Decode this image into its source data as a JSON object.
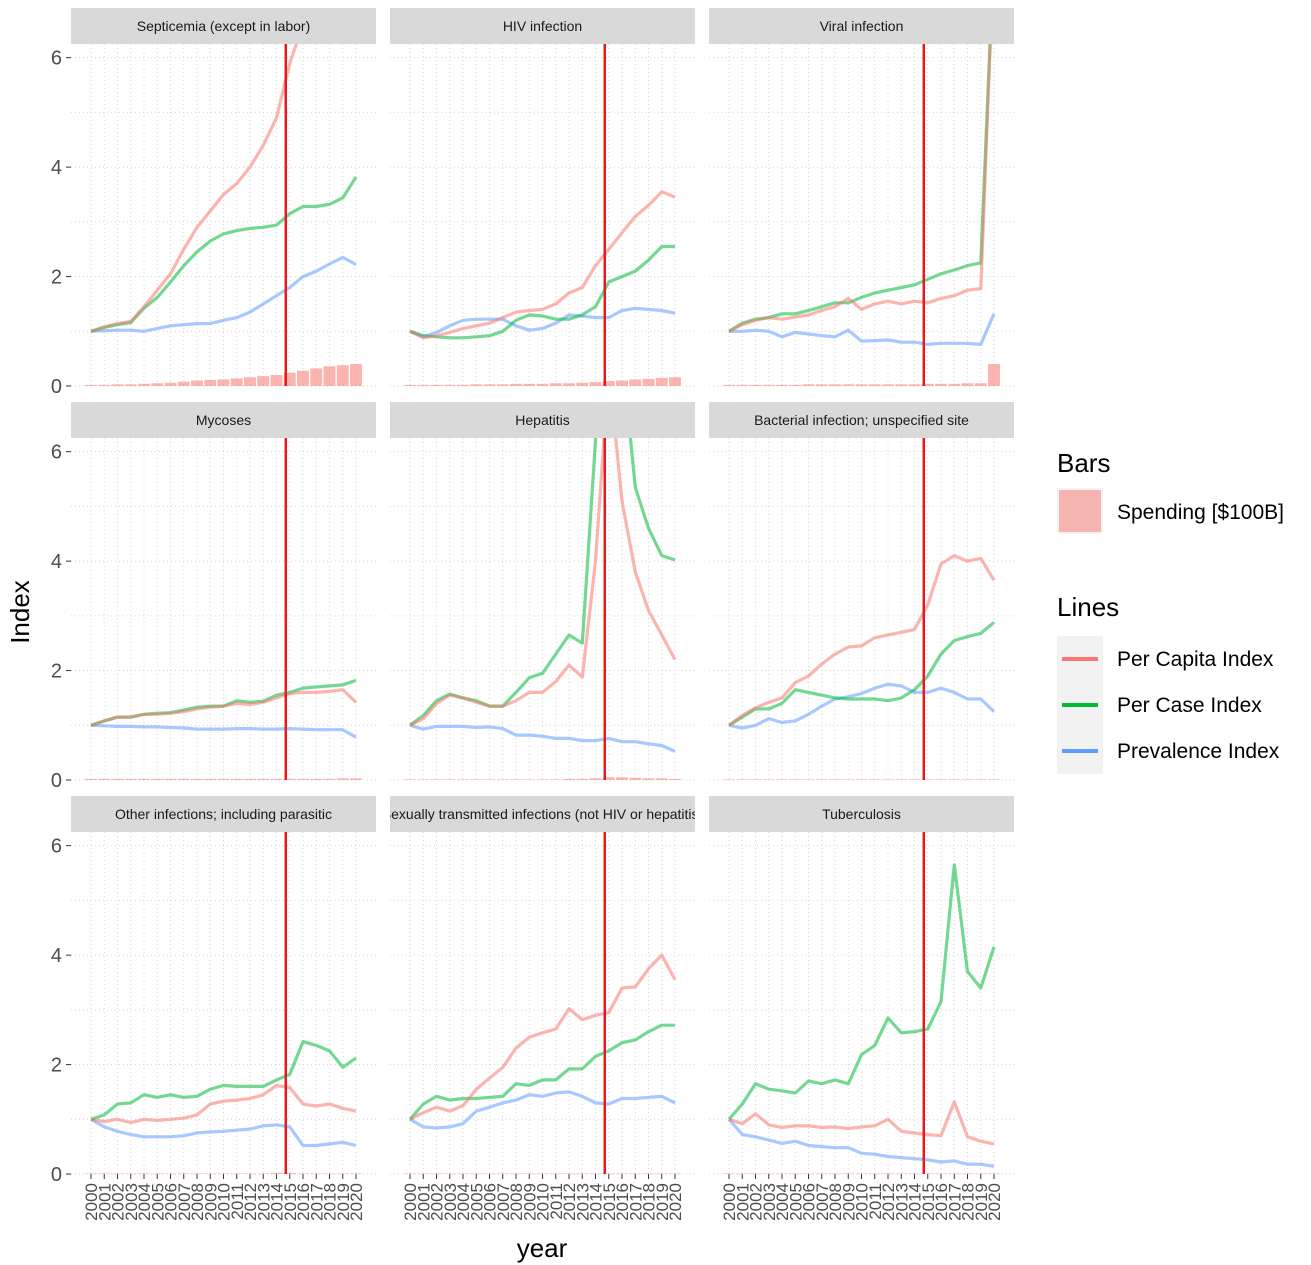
{
  "axes": {
    "xlabel": "year",
    "ylabel": "Index"
  },
  "legend": {
    "bars_title": "Bars",
    "bars_items": [
      {
        "label": "Spending [$100B]",
        "color": "#F8766D"
      }
    ],
    "lines_title": "Lines",
    "lines_items": [
      {
        "label": "Per Capita Index",
        "color": "#F8766D"
      },
      {
        "label": "Per Case Index",
        "color": "#00BA38"
      },
      {
        "label": "Prevalence Index",
        "color": "#619CFF"
      }
    ]
  },
  "chart_data": {
    "type": "line",
    "facets": 9,
    "x": [
      2000,
      2001,
      2002,
      2003,
      2004,
      2005,
      2006,
      2007,
      2008,
      2009,
      2010,
      2011,
      2012,
      2013,
      2014,
      2015,
      2016,
      2017,
      2018,
      2019,
      2020
    ],
    "x_tick_labels": [
      "2000",
      "2001",
      "2002",
      "2003",
      "2004",
      "2005",
      "2006",
      "2007",
      "2008",
      "2009",
      "2010",
      "2011",
      "2012",
      "2013",
      "2014",
      "2015",
      "2016",
      "2017",
      "2018",
      "2019",
      "2020"
    ],
    "ylim": [
      0,
      6.25
    ],
    "y_ticks": [
      0,
      2,
      4,
      6
    ],
    "y_tick_labels": [
      "0",
      "2",
      "4",
      "6"
    ],
    "vline_x": 2014.7,
    "vline_color": "#E41A1C",
    "colors": {
      "per_capita": "#F8766D",
      "per_case": "#00BA38",
      "prevalence": "#619CFF",
      "bars": "#F8766D"
    },
    "panels": [
      {
        "title": "Septicemia (except in labor)",
        "spending": [
          0.02,
          0.02,
          0.03,
          0.03,
          0.04,
          0.05,
          0.06,
          0.08,
          0.1,
          0.11,
          0.12,
          0.14,
          0.16,
          0.18,
          0.2,
          0.24,
          0.28,
          0.32,
          0.36,
          0.38,
          0.4
        ],
        "per_capita": [
          1.0,
          1.08,
          1.14,
          1.18,
          1.45,
          1.75,
          2.05,
          2.5,
          2.9,
          3.2,
          3.5,
          3.7,
          4.0,
          4.4,
          4.9,
          5.9,
          6.6,
          7.0,
          7.4,
          7.8,
          8.2
        ],
        "per_case": [
          1.0,
          1.07,
          1.12,
          1.16,
          1.42,
          1.62,
          1.9,
          2.2,
          2.45,
          2.65,
          2.78,
          2.84,
          2.88,
          2.9,
          2.94,
          3.15,
          3.28,
          3.28,
          3.32,
          3.44,
          3.82
        ],
        "prevalence": [
          1.0,
          1.01,
          1.02,
          1.02,
          1.0,
          1.05,
          1.1,
          1.12,
          1.14,
          1.14,
          1.2,
          1.25,
          1.35,
          1.5,
          1.65,
          1.8,
          2.0,
          2.1,
          2.23,
          2.35,
          2.22
        ]
      },
      {
        "title": "HIV infection",
        "spending": [
          0.02,
          0.02,
          0.02,
          0.02,
          0.02,
          0.03,
          0.03,
          0.03,
          0.04,
          0.04,
          0.04,
          0.05,
          0.05,
          0.06,
          0.07,
          0.09,
          0.1,
          0.12,
          0.13,
          0.15,
          0.16
        ],
        "per_capita": [
          1.0,
          0.88,
          0.92,
          0.98,
          1.05,
          1.1,
          1.15,
          1.25,
          1.35,
          1.38,
          1.4,
          1.5,
          1.7,
          1.8,
          2.2,
          2.5,
          2.8,
          3.1,
          3.3,
          3.55,
          3.45
        ],
        "per_case": [
          1.0,
          0.92,
          0.9,
          0.88,
          0.88,
          0.9,
          0.92,
          1.0,
          1.2,
          1.3,
          1.28,
          1.22,
          1.22,
          1.3,
          1.45,
          1.9,
          2.0,
          2.1,
          2.3,
          2.55,
          2.55
        ],
        "prevalence": [
          1.0,
          0.9,
          0.98,
          1.1,
          1.2,
          1.22,
          1.22,
          1.22,
          1.1,
          1.02,
          1.05,
          1.15,
          1.3,
          1.28,
          1.25,
          1.25,
          1.38,
          1.42,
          1.4,
          1.38,
          1.33
        ]
      },
      {
        "title": "Viral infection",
        "spending": [
          0.02,
          0.02,
          0.02,
          0.02,
          0.02,
          0.02,
          0.03,
          0.03,
          0.03,
          0.03,
          0.03,
          0.03,
          0.03,
          0.03,
          0.03,
          0.04,
          0.04,
          0.04,
          0.05,
          0.05,
          0.4
        ],
        "per_capita": [
          1.0,
          1.12,
          1.2,
          1.25,
          1.22,
          1.26,
          1.3,
          1.38,
          1.45,
          1.6,
          1.4,
          1.5,
          1.55,
          1.5,
          1.55,
          1.52,
          1.6,
          1.65,
          1.75,
          1.78,
          8.0
        ],
        "per_case": [
          1.0,
          1.15,
          1.22,
          1.25,
          1.32,
          1.32,
          1.38,
          1.45,
          1.52,
          1.52,
          1.62,
          1.7,
          1.75,
          1.8,
          1.85,
          1.95,
          2.05,
          2.12,
          2.2,
          2.25,
          8.0
        ],
        "prevalence": [
          1.0,
          1.0,
          1.02,
          1.0,
          0.9,
          0.98,
          0.95,
          0.92,
          0.9,
          1.02,
          0.82,
          0.83,
          0.84,
          0.8,
          0.8,
          0.76,
          0.78,
          0.78,
          0.78,
          0.76,
          1.32
        ]
      },
      {
        "title": "Mycoses",
        "spending": [
          0.02,
          0.02,
          0.02,
          0.02,
          0.02,
          0.02,
          0.02,
          0.02,
          0.02,
          0.02,
          0.02,
          0.02,
          0.02,
          0.02,
          0.02,
          0.02,
          0.02,
          0.02,
          0.02,
          0.03,
          0.03
        ],
        "per_capita": [
          1.0,
          1.08,
          1.15,
          1.15,
          1.2,
          1.2,
          1.22,
          1.25,
          1.3,
          1.33,
          1.35,
          1.4,
          1.38,
          1.42,
          1.5,
          1.58,
          1.6,
          1.6,
          1.62,
          1.65,
          1.42
        ],
        "per_case": [
          1.0,
          1.08,
          1.15,
          1.15,
          1.2,
          1.22,
          1.23,
          1.28,
          1.33,
          1.35,
          1.35,
          1.45,
          1.42,
          1.44,
          1.55,
          1.6,
          1.68,
          1.7,
          1.72,
          1.74,
          1.82
        ],
        "prevalence": [
          1.0,
          0.99,
          0.98,
          0.98,
          0.97,
          0.97,
          0.96,
          0.95,
          0.93,
          0.93,
          0.93,
          0.94,
          0.94,
          0.93,
          0.93,
          0.94,
          0.93,
          0.92,
          0.92,
          0.92,
          0.78
        ]
      },
      {
        "title": "Hepatitis",
        "spending": [
          0.01,
          0.01,
          0.01,
          0.01,
          0.01,
          0.01,
          0.01,
          0.01,
          0.01,
          0.01,
          0.01,
          0.01,
          0.02,
          0.02,
          0.03,
          0.05,
          0.05,
          0.04,
          0.03,
          0.03,
          0.02
        ],
        "per_capita": [
          1.0,
          1.12,
          1.4,
          1.55,
          1.5,
          1.42,
          1.35,
          1.35,
          1.45,
          1.6,
          1.6,
          1.8,
          2.1,
          1.88,
          4.0,
          7.5,
          5.1,
          3.8,
          3.1,
          2.65,
          2.2
        ],
        "per_case": [
          1.0,
          1.18,
          1.45,
          1.57,
          1.5,
          1.45,
          1.35,
          1.35,
          1.6,
          1.87,
          1.95,
          2.3,
          2.65,
          2.5,
          6.2,
          9.0,
          7.8,
          5.35,
          4.6,
          4.1,
          4.02
        ],
        "prevalence": [
          1.0,
          0.93,
          0.98,
          0.98,
          0.98,
          0.96,
          0.97,
          0.94,
          0.82,
          0.82,
          0.8,
          0.76,
          0.76,
          0.72,
          0.72,
          0.76,
          0.7,
          0.7,
          0.66,
          0.63,
          0.52
        ]
      },
      {
        "title": "Bacterial infection; unspecified site",
        "spending": [
          0.01,
          0.01,
          0.01,
          0.01,
          0.01,
          0.01,
          0.01,
          0.01,
          0.01,
          0.01,
          0.01,
          0.01,
          0.01,
          0.01,
          0.01,
          0.01,
          0.01,
          0.01,
          0.01,
          0.01,
          0.01
        ],
        "per_capita": [
          1.0,
          1.18,
          1.32,
          1.42,
          1.5,
          1.78,
          1.9,
          2.12,
          2.3,
          2.43,
          2.45,
          2.6,
          2.65,
          2.7,
          2.75,
          3.2,
          3.95,
          4.1,
          4.0,
          4.05,
          3.65
        ],
        "per_case": [
          1.0,
          1.15,
          1.3,
          1.3,
          1.4,
          1.65,
          1.6,
          1.55,
          1.5,
          1.48,
          1.48,
          1.48,
          1.45,
          1.5,
          1.65,
          1.9,
          2.3,
          2.55,
          2.62,
          2.68,
          2.88
        ],
        "prevalence": [
          1.0,
          0.95,
          1.0,
          1.12,
          1.05,
          1.08,
          1.2,
          1.35,
          1.48,
          1.52,
          1.58,
          1.68,
          1.75,
          1.72,
          1.6,
          1.6,
          1.68,
          1.6,
          1.48,
          1.48,
          1.25
        ]
      },
      {
        "title": "Other infections; including parasitic",
        "spending": [
          0.01,
          0.01,
          0.01,
          0.01,
          0.01,
          0.01,
          0.01,
          0.01,
          0.01,
          0.01,
          0.01,
          0.01,
          0.01,
          0.01,
          0.02,
          0.02,
          0.01,
          0.01,
          0.01,
          0.01,
          0.01
        ],
        "per_capita": [
          1.0,
          0.96,
          1.0,
          0.94,
          1.0,
          0.98,
          1.0,
          1.02,
          1.08,
          1.28,
          1.33,
          1.35,
          1.38,
          1.45,
          1.62,
          1.58,
          1.28,
          1.24,
          1.28,
          1.2,
          1.15
        ],
        "per_case": [
          1.0,
          1.08,
          1.28,
          1.3,
          1.45,
          1.4,
          1.45,
          1.4,
          1.42,
          1.55,
          1.62,
          1.6,
          1.6,
          1.6,
          1.72,
          1.82,
          2.42,
          2.35,
          2.25,
          1.95,
          2.12
        ],
        "prevalence": [
          1.0,
          0.86,
          0.78,
          0.72,
          0.68,
          0.68,
          0.68,
          0.7,
          0.75,
          0.77,
          0.78,
          0.8,
          0.82,
          0.88,
          0.9,
          0.86,
          0.52,
          0.52,
          0.55,
          0.58,
          0.52
        ]
      },
      {
        "title": "Sexually transmitted infections (not HIV or hepatitis)",
        "spending": [
          0.01,
          0.01,
          0.01,
          0.01,
          0.01,
          0.01,
          0.01,
          0.01,
          0.01,
          0.01,
          0.01,
          0.01,
          0.01,
          0.01,
          0.01,
          0.01,
          0.01,
          0.01,
          0.01,
          0.01,
          0.01
        ],
        "per_capita": [
          1.0,
          1.12,
          1.22,
          1.15,
          1.25,
          1.55,
          1.75,
          1.95,
          2.3,
          2.5,
          2.58,
          2.65,
          3.02,
          2.82,
          2.9,
          2.95,
          3.4,
          3.42,
          3.75,
          4.0,
          3.55
        ],
        "per_case": [
          1.0,
          1.28,
          1.42,
          1.35,
          1.38,
          1.38,
          1.4,
          1.42,
          1.65,
          1.62,
          1.72,
          1.72,
          1.92,
          1.92,
          2.15,
          2.25,
          2.4,
          2.45,
          2.6,
          2.72,
          2.72
        ],
        "prevalence": [
          1.0,
          0.86,
          0.84,
          0.86,
          0.92,
          1.15,
          1.22,
          1.3,
          1.35,
          1.45,
          1.42,
          1.48,
          1.5,
          1.42,
          1.3,
          1.28,
          1.38,
          1.38,
          1.4,
          1.42,
          1.3
        ]
      },
      {
        "title": "Tuberculosis",
        "spending": [
          0.01,
          0.01,
          0.01,
          0.01,
          0.01,
          0.01,
          0.01,
          0.01,
          0.01,
          0.01,
          0.01,
          0.01,
          0.01,
          0.01,
          0.01,
          0.01,
          0.01,
          0.01,
          0.01,
          0.01,
          0.01
        ],
        "per_capita": [
          1.0,
          0.92,
          1.1,
          0.9,
          0.85,
          0.88,
          0.88,
          0.85,
          0.86,
          0.83,
          0.86,
          0.88,
          1.0,
          0.78,
          0.75,
          0.72,
          0.7,
          1.32,
          0.68,
          0.6,
          0.55
        ],
        "per_case": [
          1.0,
          1.28,
          1.65,
          1.55,
          1.52,
          1.48,
          1.7,
          1.65,
          1.72,
          1.65,
          2.18,
          2.35,
          2.85,
          2.58,
          2.6,
          2.65,
          3.15,
          5.65,
          3.7,
          3.4,
          4.15
        ],
        "prevalence": [
          1.0,
          0.72,
          0.68,
          0.62,
          0.56,
          0.6,
          0.52,
          0.5,
          0.48,
          0.48,
          0.38,
          0.36,
          0.32,
          0.3,
          0.28,
          0.26,
          0.22,
          0.24,
          0.18,
          0.18,
          0.14
        ]
      }
    ]
  }
}
